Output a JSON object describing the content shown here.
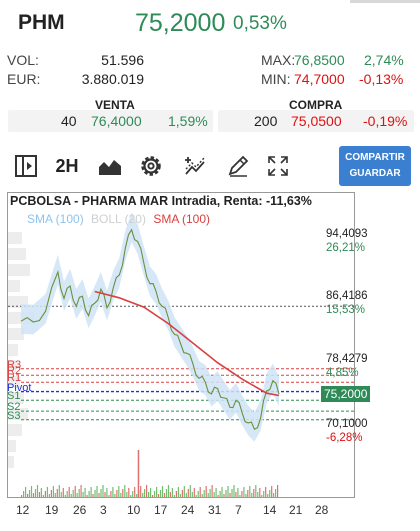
{
  "header": {
    "ticker": "PHM",
    "price": "75,2000",
    "change_pct": "0,53%"
  },
  "stats": {
    "vol_label": "VOL:",
    "vol_value": "51.596",
    "eur_label": "EUR:",
    "eur_value": "3.880.019",
    "max_label": "MAX:",
    "max_value": "76,8500",
    "max_pct": "2,74%",
    "min_label": "MIN:",
    "min_value": "74,7000",
    "min_pct": "-0,13%"
  },
  "sell": {
    "heading": "VENTA",
    "qty": "40",
    "price": "76,4000",
    "pct": "1,59%"
  },
  "buy": {
    "heading": "COMPRA",
    "qty": "200",
    "price": "75,0500",
    "pct": "-0,19%"
  },
  "toolbar": {
    "timeframe": "2H",
    "share_label": "COMPARTIR",
    "save_label": "GUARDAR",
    "icons": [
      "panel-toggle-icon",
      "area-chart-icon",
      "gear-icon",
      "indicators-icon",
      "draw-pencil-icon",
      "fullscreen-icon"
    ]
  },
  "colors": {
    "up": "#2e8b57",
    "down": "#dd1111",
    "accent": "#3b7fd1",
    "sma_fast": "#8fc3ee",
    "sma_slow": "#d94040"
  },
  "chart_data": {
    "type": "line",
    "title": "PCBOLSA - PHARMA MAR Intradia, Renta: -11,63%",
    "legend": [
      "SMA (100)",
      "BOLL (20)",
      "SMA (100)"
    ],
    "ylim": [
      66.5,
      100
    ],
    "x_ticks": [
      "12",
      "19",
      "26",
      "3",
      "10",
      "17",
      "24",
      "31",
      "7",
      "14",
      "21",
      "28"
    ],
    "price_series": [
      [
        0,
        84.5
      ],
      [
        2,
        84.4
      ],
      [
        4,
        85.8
      ],
      [
        6,
        90.8
      ],
      [
        7,
        87.4
      ],
      [
        8,
        89.0
      ],
      [
        9,
        86.4
      ],
      [
        10,
        87.7
      ],
      [
        11,
        85.2
      ],
      [
        12,
        86.8
      ],
      [
        13,
        88.6
      ],
      [
        14,
        86.2
      ],
      [
        15,
        88.7
      ],
      [
        16,
        90.4
      ],
      [
        17,
        93.9
      ],
      [
        18,
        96.2
      ],
      [
        19,
        94.7
      ],
      [
        20,
        91.9
      ],
      [
        21,
        89.3
      ],
      [
        22,
        88.3
      ],
      [
        23,
        86.4
      ],
      [
        24,
        84.9
      ],
      [
        25,
        82.8
      ],
      [
        26,
        81.6
      ],
      [
        27,
        80.4
      ],
      [
        28,
        79.0
      ],
      [
        29,
        77.2
      ],
      [
        30,
        76.7
      ],
      [
        31,
        75.2
      ],
      [
        32,
        75.9
      ],
      [
        33,
        74.7
      ],
      [
        34,
        73.5
      ],
      [
        35,
        74.4
      ],
      [
        36,
        72.8
      ],
      [
        37,
        71.5
      ],
      [
        38,
        70.7
      ],
      [
        39,
        72.1
      ],
      [
        40,
        75.6
      ],
      [
        41,
        76.9
      ],
      [
        42,
        75.2
      ]
    ],
    "sma_slow": [
      [
        12,
        88.3
      ],
      [
        16,
        87.5
      ],
      [
        20,
        86.3
      ],
      [
        24,
        84.2
      ],
      [
        28,
        81.7
      ],
      [
        32,
        79.2
      ],
      [
        36,
        77.1
      ],
      [
        40,
        75.3
      ],
      [
        42,
        75.0
      ]
    ],
    "levels": [
      {
        "label": "R3",
        "value": 78.43
      },
      {
        "label": "R2",
        "value": 77.6
      },
      {
        "label": "R1",
        "value": 76.7
      },
      {
        "label": "Pivot",
        "value": 75.5
      },
      {
        "label": "S1",
        "value": 74.4
      },
      {
        "label": "S2",
        "value": 73.0
      },
      {
        "label": "S3",
        "value": 71.9
      }
    ],
    "axis_labels": [
      {
        "price": "94,4093",
        "pct": "26,21%",
        "value": 94.4093,
        "color": "#2e8b57"
      },
      {
        "price": "86,4186",
        "pct": "15,53%",
        "value": 86.4186,
        "color": "#2e8b57"
      },
      {
        "price": "78,4279",
        "pct": "4,85%",
        "value": 78.4279,
        "color": "#2e8b57"
      },
      {
        "price": "70,1000",
        "pct": "-6,28%",
        "value": 70.1,
        "color": "#dd1111"
      }
    ],
    "current_price_tag": "75,2000",
    "grid": false
  }
}
